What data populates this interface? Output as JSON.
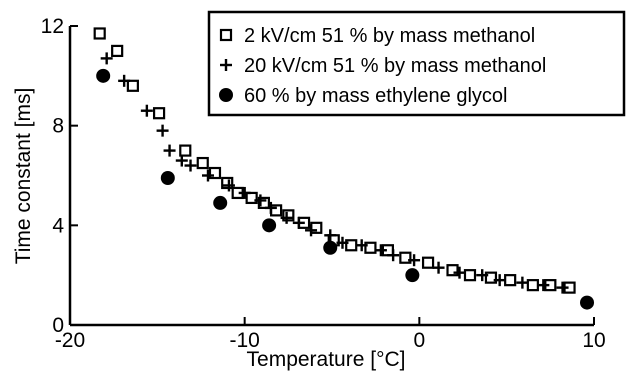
{
  "chart_data": {
    "type": "scatter",
    "title": "",
    "xlabel": "Temperature [°C]",
    "ylabel": "Time constant [ms]",
    "xlim": [
      -20,
      10
    ],
    "ylim": [
      0,
      12
    ],
    "x_ticks": [
      -20,
      -10,
      0,
      10
    ],
    "y_ticks": [
      0,
      4,
      8,
      12
    ],
    "grid": false,
    "legend_position": "top-right",
    "series": [
      {
        "name": "2 kV/cm 51 % by mass methanol",
        "marker": "open-square",
        "x": [
          -18.3,
          -17.3,
          -16.4,
          -14.9,
          -13.4,
          -12.4,
          -11.7,
          -11.0,
          -10.4,
          -9.6,
          -8.9,
          -8.2,
          -7.5,
          -6.6,
          -5.9,
          -4.9,
          -3.9,
          -2.8,
          -1.8,
          -0.8,
          0.5,
          1.9,
          2.9,
          4.1,
          5.2,
          6.5,
          7.5,
          8.6
        ],
        "y": [
          11.7,
          11.0,
          9.6,
          8.5,
          7.0,
          6.5,
          6.1,
          5.7,
          5.3,
          5.1,
          4.9,
          4.6,
          4.4,
          4.1,
          3.9,
          3.4,
          3.2,
          3.1,
          3.0,
          2.7,
          2.5,
          2.2,
          2.0,
          1.9,
          1.8,
          1.6,
          1.6,
          1.5
        ]
      },
      {
        "name": "20 kV/cm 51 % by mass methanol",
        "marker": "plus",
        "x": [
          -17.9,
          -16.9,
          -15.6,
          -14.7,
          -14.3,
          -13.6,
          -13.1,
          -12.1,
          -10.9,
          -10.0,
          -9.1,
          -8.5,
          -7.6,
          -6.9,
          -6.2,
          -5.1,
          -4.4,
          -3.3,
          -2.2,
          -1.5,
          -0.3,
          1.1,
          2.3,
          3.6,
          4.6,
          5.9,
          7.1,
          8.2
        ],
        "y": [
          10.7,
          9.8,
          8.6,
          7.8,
          7.0,
          6.6,
          6.4,
          6.0,
          5.6,
          5.3,
          5.0,
          4.7,
          4.3,
          4.1,
          3.8,
          3.6,
          3.3,
          3.2,
          3.0,
          2.8,
          2.6,
          2.3,
          2.1,
          2.0,
          1.8,
          1.7,
          1.6,
          1.5
        ]
      },
      {
        "name": "60 % by mass ethylene glycol",
        "marker": "filled-circle",
        "x": [
          -18.1,
          -14.4,
          -11.4,
          -8.6,
          -5.1,
          -0.4,
          9.6
        ],
        "y": [
          10.0,
          5.9,
          4.9,
          4.0,
          3.1,
          2.0,
          0.9
        ]
      }
    ]
  }
}
